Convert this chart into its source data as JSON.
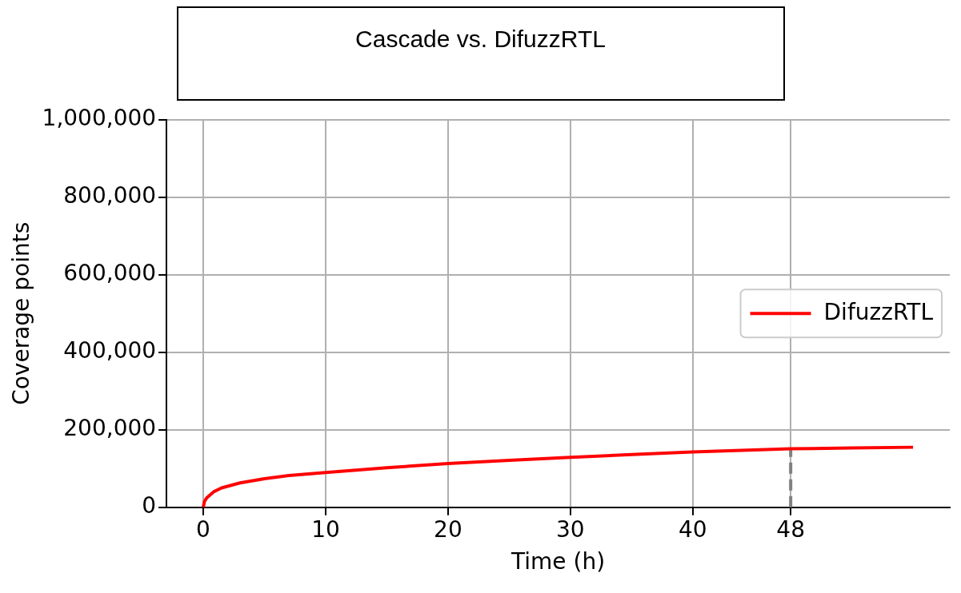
{
  "chart_data": {
    "type": "line",
    "title": "Cascade vs. DifuzzRTL",
    "xlabel": "Time (h)",
    "ylabel": "Coverage points",
    "x": [
      0,
      0.1,
      0.3,
      0.85,
      1.5,
      3,
      5,
      7,
      10,
      15,
      20,
      25,
      30,
      35,
      40,
      45,
      48,
      53,
      58
    ],
    "series": [
      {
        "name": "DifuzzRTL",
        "color": "#ff0000",
        "values": [
          0,
          15000,
          25000,
          40000,
          50000,
          63000,
          74000,
          82000,
          90000,
          102000,
          113000,
          121000,
          129000,
          136000,
          143000,
          148000,
          151000,
          153000,
          155000
        ]
      }
    ],
    "xlim": [
      -3,
      61
    ],
    "xticks": [
      0,
      10,
      20,
      30,
      40,
      48
    ],
    "ylim": [
      0,
      1000000
    ],
    "yticks": [
      0,
      {
        "value": 200000,
        "label": "200,000"
      },
      {
        "value": 400000,
        "label": "400,000"
      },
      {
        "value": 600000,
        "label": "600,000"
      },
      {
        "value": 800000,
        "label": "800,000"
      },
      {
        "value": 1000000,
        "label": "1,000,000"
      }
    ],
    "ref_lines": [
      {
        "axis": "x",
        "value": 48,
        "color": "#808080",
        "line_style": "dashed"
      }
    ],
    "grid": true,
    "legend": "right",
    "marker": "none",
    "line_style": "solid"
  }
}
